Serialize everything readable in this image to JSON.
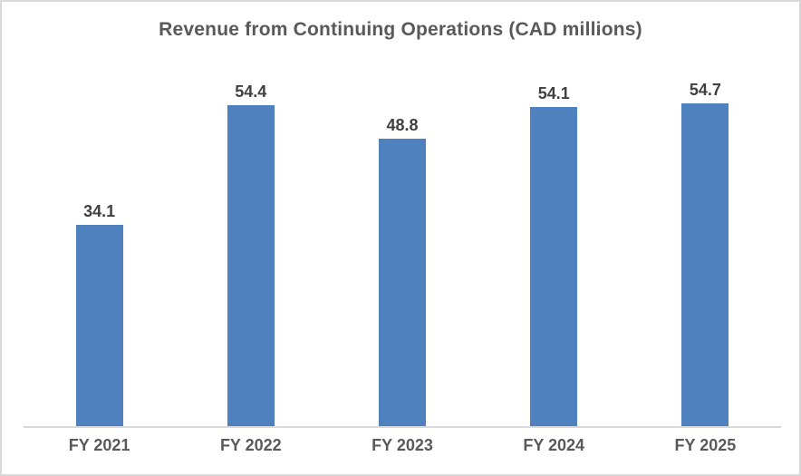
{
  "frame": {
    "background": "#ffffff",
    "border_color": "#d9d9d9"
  },
  "chart_data": {
    "type": "bar",
    "title": "Revenue from Continuing Operations (CAD millions)",
    "categories": [
      "FY 2021",
      "FY 2022",
      "FY 2023",
      "FY 2024",
      "FY 2025"
    ],
    "values": [
      34.1,
      54.4,
      48.8,
      54.1,
      54.7
    ],
    "data_labels": [
      "34.1",
      "54.4",
      "48.8",
      "54.1",
      "54.7"
    ],
    "xlabel": "",
    "ylabel": "",
    "ylim": [
      0,
      60
    ],
    "grid": false,
    "legend": false,
    "y_axis_visible": false,
    "colors": {
      "bar": "#4e81bd",
      "title": "#595959",
      "data_label": "#404040",
      "tick_label": "#595959",
      "axis_line": "#d9d9d9"
    }
  }
}
